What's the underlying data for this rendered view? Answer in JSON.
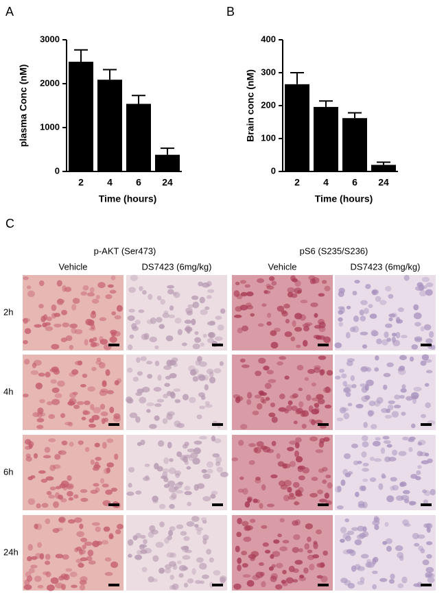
{
  "chart_data": [
    {
      "type": "bar",
      "panel": "A",
      "xlabel": "Time (hours)",
      "ylabel": "plasma Conc (nM)",
      "categories": [
        "2",
        "4",
        "6",
        "24"
      ],
      "values": [
        2500,
        2090,
        1540,
        380
      ],
      "errors": [
        270,
        230,
        190,
        150
      ],
      "color": "#000000",
      "ylim": [
        0,
        3000
      ],
      "yticks": [
        0,
        1000,
        2000,
        3000
      ]
    },
    {
      "type": "bar",
      "panel": "B",
      "xlabel": "Time (hours)",
      "ylabel": "Brain conc (nM)",
      "categories": [
        "2",
        "4",
        "6",
        "24"
      ],
      "values": [
        265,
        196,
        162,
        20
      ],
      "errors": [
        35,
        18,
        16,
        8
      ],
      "color": "#000000",
      "ylim": [
        0,
        400
      ],
      "yticks": [
        0,
        100,
        200,
        300,
        400
      ]
    }
  ],
  "panel_c": {
    "label": "C",
    "groups": [
      "p-AKT (Ser473)",
      "pS6 (S235/S236)"
    ],
    "columns": [
      "Vehicle",
      "DS7423 (6mg/kg)",
      "Vehicle",
      "DS7423 (6mg/kg)"
    ],
    "rows": [
      "2h",
      "4h",
      "6h",
      "24h"
    ]
  }
}
